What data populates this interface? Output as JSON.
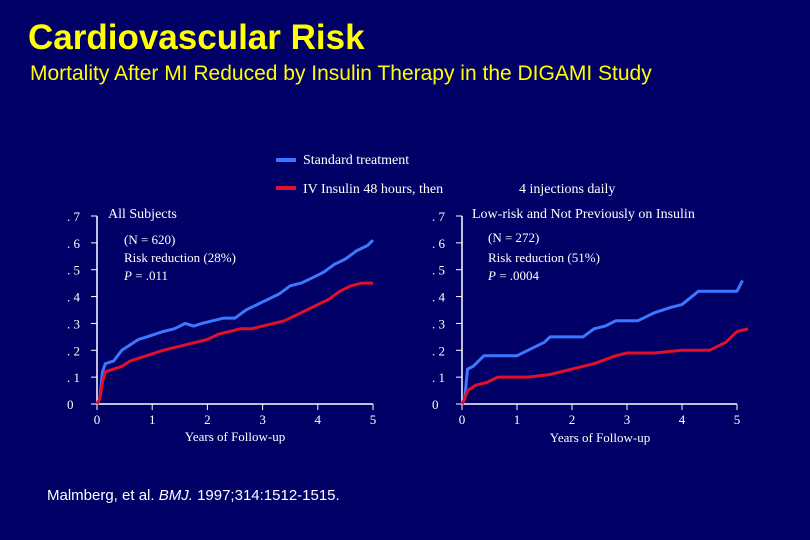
{
  "slide": {
    "title": "Cardiovascular Risk",
    "subtitle": "Mortality After MI Reduced by Insulin Therapy in the DIGAMI Study",
    "citation_authors": "Malmberg, et al.",
    "citation_journal": "BMJ.",
    "citation_details": "1997;314:1512-1515."
  },
  "colors": {
    "background": "#000066",
    "title": "#ffff00",
    "standard": "#3c78ff",
    "insulin": "#e0102a",
    "text": "#ffffff"
  },
  "legend": {
    "standard_label": "Standard treatment",
    "insulin_label_part1": "IV Insulin 48 hours, then",
    "insulin_label_part2": "4 injections daily"
  },
  "chart_data": [
    {
      "type": "line",
      "title": "All Subjects",
      "annotation_n": "(N = 620)",
      "annotation_reduction": "Risk reduction (28%)",
      "annotation_p_label": "P",
      "annotation_p_value": " = .011",
      "xlabel": "Years of Follow-up",
      "ylabel": "",
      "xlim": [
        0,
        5
      ],
      "ylim": [
        0,
        0.7
      ],
      "x_ticks": [
        0,
        1,
        2,
        3,
        4,
        5
      ],
      "x_tick_labels": [
        "0",
        "1",
        "2",
        "3",
        "4",
        "5"
      ],
      "y_ticks": [
        0,
        0.1,
        0.2,
        0.3,
        0.4,
        0.5,
        0.6,
        0.7
      ],
      "y_tick_labels": [
        "0",
        ". 1",
        ". 2",
        ". 3",
        ". 4",
        ". 5",
        ". 6",
        ". 7"
      ],
      "series": [
        {
          "name": "Standard treatment",
          "points": [
            [
              0,
              0
            ],
            [
              0.05,
              0.02
            ],
            [
              0.1,
              0.12
            ],
            [
              0.15,
              0.15
            ],
            [
              0.3,
              0.16
            ],
            [
              0.45,
              0.2
            ],
            [
              0.6,
              0.22
            ],
            [
              0.75,
              0.24
            ],
            [
              0.9,
              0.25
            ],
            [
              1.05,
              0.26
            ],
            [
              1.2,
              0.27
            ],
            [
              1.4,
              0.28
            ],
            [
              1.6,
              0.3
            ],
            [
              1.75,
              0.29
            ],
            [
              1.9,
              0.3
            ],
            [
              2.1,
              0.31
            ],
            [
              2.3,
              0.32
            ],
            [
              2.5,
              0.32
            ],
            [
              2.7,
              0.35
            ],
            [
              2.9,
              0.37
            ],
            [
              3.1,
              0.39
            ],
            [
              3.3,
              0.41
            ],
            [
              3.5,
              0.44
            ],
            [
              3.7,
              0.45
            ],
            [
              3.9,
              0.47
            ],
            [
              4.1,
              0.49
            ],
            [
              4.3,
              0.52
            ],
            [
              4.5,
              0.54
            ],
            [
              4.7,
              0.57
            ],
            [
              4.9,
              0.59
            ],
            [
              5,
              0.61
            ]
          ]
        },
        {
          "name": "IV Insulin 48 hours, then 4 injections daily",
          "points": [
            [
              0,
              0
            ],
            [
              0.05,
              0.02
            ],
            [
              0.1,
              0.08
            ],
            [
              0.15,
              0.12
            ],
            [
              0.3,
              0.13
            ],
            [
              0.45,
              0.14
            ],
            [
              0.6,
              0.16
            ],
            [
              0.75,
              0.17
            ],
            [
              0.9,
              0.18
            ],
            [
              1.05,
              0.19
            ],
            [
              1.2,
              0.2
            ],
            [
              1.4,
              0.21
            ],
            [
              1.6,
              0.22
            ],
            [
              1.8,
              0.23
            ],
            [
              2,
              0.24
            ],
            [
              2.2,
              0.26
            ],
            [
              2.4,
              0.27
            ],
            [
              2.6,
              0.28
            ],
            [
              2.8,
              0.28
            ],
            [
              3,
              0.29
            ],
            [
              3.2,
              0.3
            ],
            [
              3.4,
              0.31
            ],
            [
              3.6,
              0.33
            ],
            [
              3.8,
              0.35
            ],
            [
              4,
              0.37
            ],
            [
              4.2,
              0.39
            ],
            [
              4.4,
              0.42
            ],
            [
              4.6,
              0.44
            ],
            [
              4.8,
              0.45
            ],
            [
              5,
              0.45
            ]
          ]
        }
      ]
    },
    {
      "type": "line",
      "title": "Low-risk and Not Previously on Insulin",
      "annotation_n": "(N = 272)",
      "annotation_reduction": "Risk reduction (51%)",
      "annotation_p_label": "P",
      "annotation_p_value": " = .0004",
      "xlabel": "Years of Follow-up",
      "ylabel": "",
      "xlim": [
        0,
        5
      ],
      "ylim": [
        0,
        0.7
      ],
      "x_ticks": [
        0,
        1,
        2,
        3,
        4,
        5
      ],
      "x_tick_labels": [
        "0",
        "1",
        "2",
        "3",
        "4",
        "5"
      ],
      "y_ticks": [
        0,
        0.1,
        0.2,
        0.3,
        0.4,
        0.5,
        0.6,
        0.7
      ],
      "y_tick_labels": [
        "0",
        ". 1",
        ". 2",
        ". 3",
        ". 4",
        ". 5",
        ". 6",
        ". 7"
      ],
      "series": [
        {
          "name": "Standard treatment",
          "points": [
            [
              0,
              0
            ],
            [
              0.05,
              0.02
            ],
            [
              0.1,
              0.13
            ],
            [
              0.2,
              0.14
            ],
            [
              0.4,
              0.18
            ],
            [
              1,
              0.18
            ],
            [
              1.2,
              0.2
            ],
            [
              1.5,
              0.23
            ],
            [
              1.6,
              0.25
            ],
            [
              2.2,
              0.25
            ],
            [
              2.4,
              0.28
            ],
            [
              2.6,
              0.29
            ],
            [
              2.8,
              0.31
            ],
            [
              3.2,
              0.31
            ],
            [
              3.5,
              0.34
            ],
            [
              3.8,
              0.36
            ],
            [
              4,
              0.37
            ],
            [
              4.3,
              0.42
            ],
            [
              5,
              0.42
            ],
            [
              5.1,
              0.46
            ]
          ]
        },
        {
          "name": "IV Insulin 48 hours, then 4 injections daily",
          "points": [
            [
              0,
              0
            ],
            [
              0.05,
              0.02
            ],
            [
              0.1,
              0.05
            ],
            [
              0.25,
              0.07
            ],
            [
              0.45,
              0.08
            ],
            [
              0.65,
              0.1
            ],
            [
              1.2,
              0.1
            ],
            [
              1.6,
              0.11
            ],
            [
              2,
              0.13
            ],
            [
              2.4,
              0.15
            ],
            [
              2.8,
              0.18
            ],
            [
              3,
              0.19
            ],
            [
              3.5,
              0.19
            ],
            [
              4,
              0.2
            ],
            [
              4.5,
              0.2
            ],
            [
              4.8,
              0.23
            ],
            [
              5,
              0.27
            ],
            [
              5.2,
              0.28
            ]
          ]
        }
      ]
    }
  ]
}
